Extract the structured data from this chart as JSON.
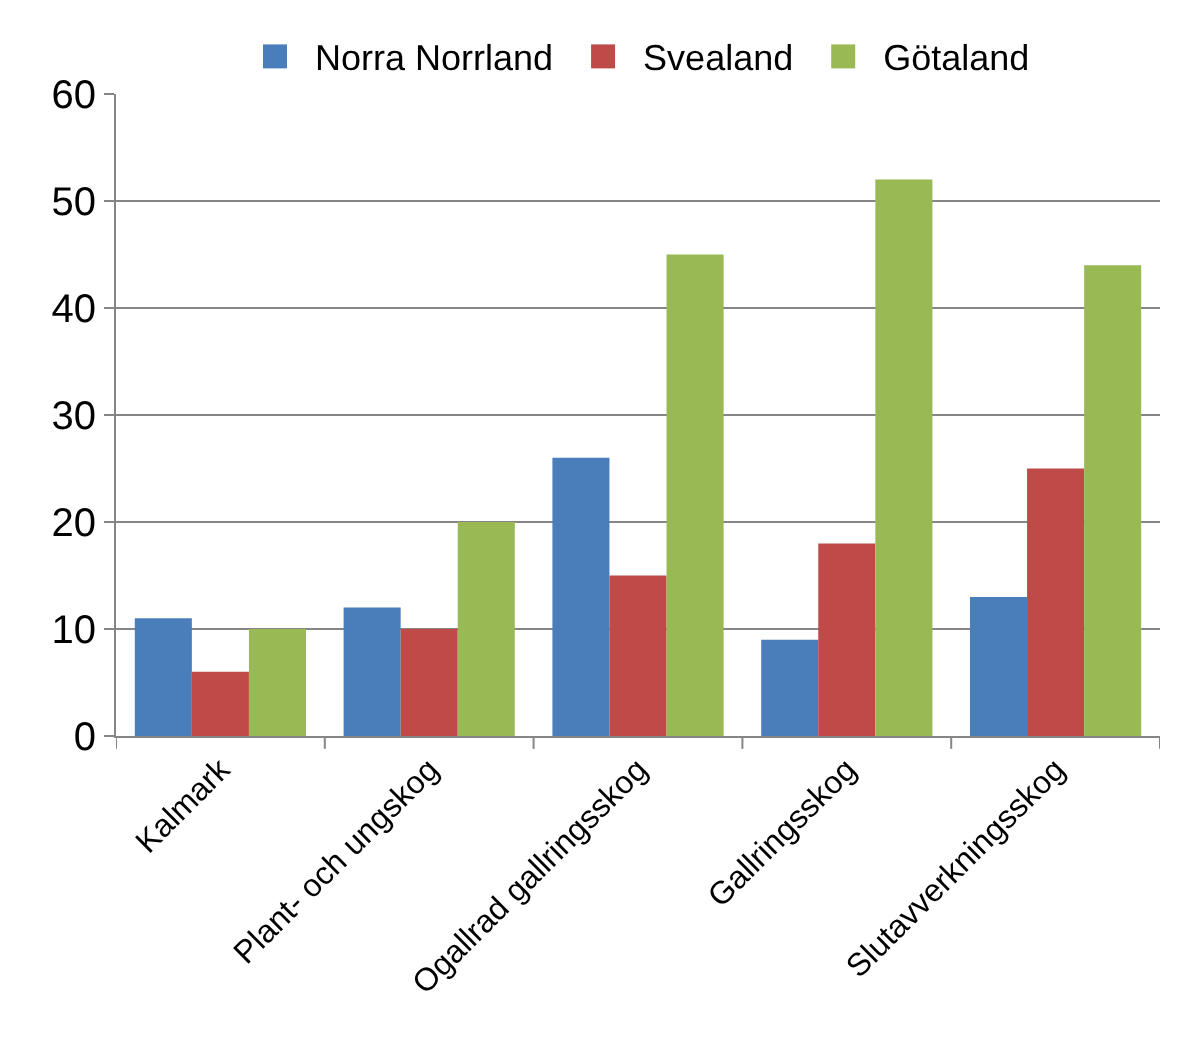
{
  "chart_data": {
    "type": "bar",
    "categories": [
      "Kalmark",
      "Plant- och ungskog",
      "Ogallrad gallringsskog",
      "Gallringsskog",
      "Slutavverkningsskog"
    ],
    "series": [
      {
        "name": "Norra Norrland",
        "color": "#4a7ebb",
        "values": [
          11,
          12,
          26,
          9,
          13
        ]
      },
      {
        "name": "Svealand",
        "color": "#be4b48",
        "values": [
          6,
          10,
          15,
          18,
          25
        ]
      },
      {
        "name": "Götaland",
        "color": "#98b954",
        "values": [
          10,
          20,
          45,
          52,
          44
        ]
      }
    ],
    "ylim": [
      0,
      60
    ],
    "yticks": [
      0,
      10,
      20,
      30,
      40,
      50,
      60
    ],
    "grid": "y",
    "legend": "top"
  }
}
